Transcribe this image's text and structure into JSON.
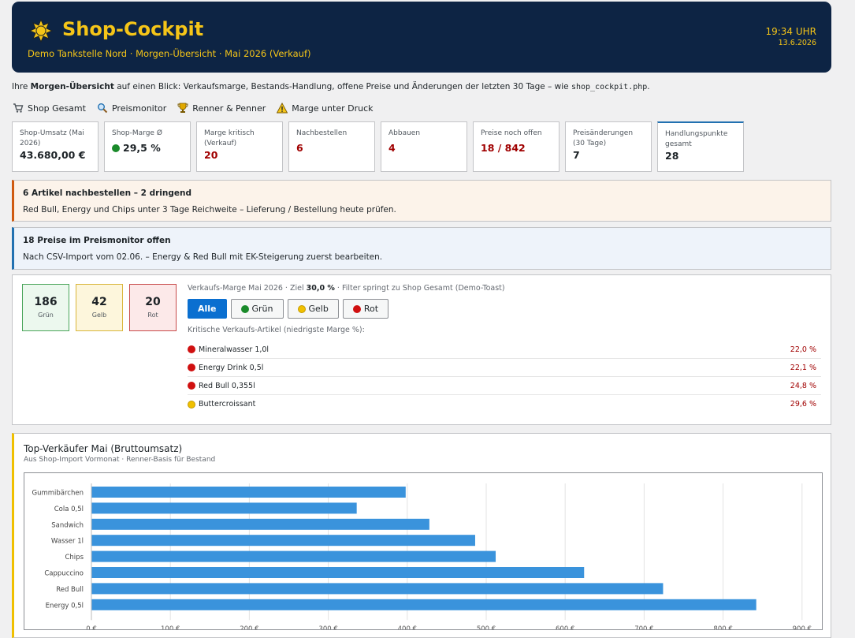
{
  "header": {
    "title": "Shop-Cockpit",
    "subtitle": "Demo Tankstelle Nord · Morgen-Übersicht · Mai 2026 (Verkauf)",
    "time": "19:34 UHR",
    "date": "13.6.2026",
    "accent_color": "#f5c518",
    "background_color": "#0d2444",
    "icon": "sun-icon"
  },
  "intro": {
    "prefix": "Ihre ",
    "bold": "Morgen-Übersicht",
    "middle": " auf einen Blick: Verkaufsmarge, Bestands-Handlung, offene Preise und Änderungen der letzten 30 Tage – wie ",
    "code": "shop_cockpit.php",
    "suffix": "."
  },
  "nav": [
    {
      "label": "Shop Gesamt",
      "icon": "cart-icon"
    },
    {
      "label": "Preismonitor",
      "icon": "magnifier-icon"
    },
    {
      "label": "Renner & Penner",
      "icon": "trophy-icon"
    },
    {
      "label": "Marge unter Druck",
      "icon": "warning-icon"
    }
  ],
  "cards": [
    {
      "label": "Shop-Umsatz (Mai 2026)",
      "value": "43.680,00 €",
      "status": "normal"
    },
    {
      "label": "Shop-Marge Ø",
      "value": "29,5 %",
      "status": "normal",
      "dot": "green"
    },
    {
      "label": "Marge kritisch (Verkauf)",
      "value": "20",
      "status": "critical"
    },
    {
      "label": "Nachbestellen",
      "value": "6",
      "status": "critical"
    },
    {
      "label": "Abbauen",
      "value": "4",
      "status": "critical"
    },
    {
      "label": "Preise noch offen",
      "value": "18 / 842",
      "status": "critical"
    },
    {
      "label": "Preisänderungen (30 Tage)",
      "value": "7",
      "status": "normal"
    },
    {
      "label": "Handlungspunkte gesamt",
      "value": "28",
      "status": "normal"
    }
  ],
  "notices": {
    "reorder": {
      "title": "6 Artikel nachbestellen – 2 dringend",
      "text": "Red Bull, Energy und Chips unter 3 Tage Reichweite – Lieferung / Bestellung heute prüfen.",
      "color": "#d05a10"
    },
    "prices": {
      "title": "18 Preise im Preismonitor offen",
      "text": "Nach CSV-Import vom 02.06. – Energy & Red Bull mit EK-Steigerung zuerst bearbeiten.",
      "color": "#2271b1"
    }
  },
  "margin": {
    "boxes": [
      {
        "value": "186",
        "label": "Grün"
      },
      {
        "value": "42",
        "label": "Gelb"
      },
      {
        "value": "20",
        "label": "Rot"
      }
    ],
    "caption_prefix": "Verkaufs-Marge Mai 2026 · Ziel ",
    "caption_target": "30,0 %",
    "caption_suffix": " · Filter springt zu Shop Gesamt (Demo-Toast)",
    "filters": [
      "Alle",
      "Grün",
      "Gelb",
      "Rot"
    ],
    "active_filter": "Alle",
    "critical_caption": "Kritische Verkaufs-Artikel (niedrigste Marge %):",
    "critical": [
      {
        "name": "Mineralwasser 1,0l",
        "value": "22,0 %",
        "dot": "red"
      },
      {
        "name": "Energy Drink 0,5l",
        "value": "22,1 %",
        "dot": "red"
      },
      {
        "name": "Red Bull 0,355l",
        "value": "24,8 %",
        "dot": "red"
      },
      {
        "name": "Buttercroissant",
        "value": "29,6 %",
        "dot": "yellow"
      }
    ]
  },
  "top_sellers": {
    "title": "Top-Verkäufer Mai (Bruttoumsatz)",
    "subtitle": "Aus Shop-Import Vormonat · Renner-Basis für Bestand"
  },
  "chart_data": {
    "type": "bar",
    "orientation": "horizontal",
    "categories": [
      "Gummibärchen",
      "Cola 0,5l",
      "Sandwich",
      "Wasser 1l",
      "Chips",
      "Cappuccino",
      "Red Bull",
      "Energy 0,5l"
    ],
    "values": [
      398,
      336,
      428,
      486,
      512,
      624,
      724,
      842
    ],
    "xlim": [
      0,
      900
    ],
    "x_tick_values": [
      0,
      100,
      200,
      300,
      400,
      500,
      600,
      700,
      800,
      900
    ],
    "x_tick_labels": [
      "0 €",
      "100 €",
      "200 €",
      "300 €",
      "400 €",
      "500 €",
      "600 €",
      "700 €",
      "800 €",
      "900 €"
    ],
    "bar_color": "#3a93dc",
    "grid": true
  }
}
